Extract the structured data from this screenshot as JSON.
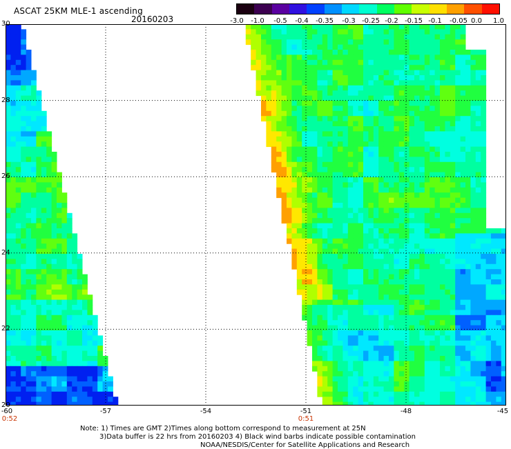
{
  "header": {
    "title": "ASCAT 25KM MLE-1 ascending",
    "date": "20160203"
  },
  "colorbar": {
    "labels": [
      "-3.0",
      "-1.0",
      "-0.5",
      "-0.4",
      "-0.35",
      "-0.3",
      "-0.25",
      "-0.2",
      "-0.15",
      "-0.1",
      "-0.05",
      "0.0",
      "1.0"
    ],
    "colors": [
      "#1a0010",
      "#3c0050",
      "#5a00a0",
      "#3010e0",
      "#0040ff",
      "#0090ff",
      "#00d8ff",
      "#00ffd0",
      "#00ff60",
      "#60ff00",
      "#c8ff00",
      "#ffe000",
      "#ffa000",
      "#ff5000",
      "#ff1000"
    ]
  },
  "map": {
    "lon_range": [
      -60,
      -45
    ],
    "lat_range": [
      20,
      30
    ],
    "y_ticks": [
      "30",
      "28",
      "26",
      "24",
      "22",
      "20"
    ],
    "x_ticks": [
      "-60",
      "-57",
      "-54",
      "-51",
      "-48",
      "-45"
    ],
    "time_labels": [
      {
        "lon": -60,
        "text": "0:52"
      },
      {
        "lon": -51,
        "text": "0:51"
      }
    ],
    "grid": true
  },
  "notes": {
    "line1": "Note: 1) Times are GMT 2)Times along bottom correspond to measurement at 25N",
    "line2": "3)Data buffer is 22 hrs from 20160203 4) Black wind barbs indicate possible contamination",
    "line3": "NOAA/NESDIS/Center for Satellite Applications and Research"
  }
}
